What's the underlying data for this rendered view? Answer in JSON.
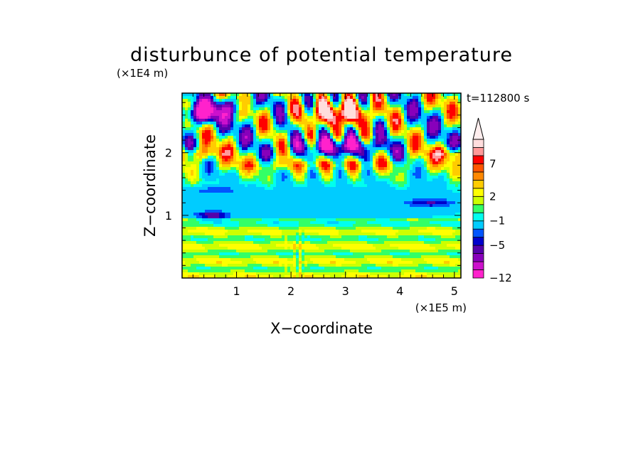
{
  "chart_data": {
    "type": "heatmap",
    "title": "disturbunce of potential temperature",
    "time_label": "t=112800 s",
    "xlabel": "X−coordinate",
    "ylabel": "Z−coordinate",
    "x_unit": "(×1E5 m)",
    "y_unit": "(×1E4 m)",
    "xlim": [
      0,
      5.12
    ],
    "ylim": [
      0,
      2.95
    ],
    "x_ticks": [
      1,
      2,
      3,
      4,
      5
    ],
    "x_ticklabels": [
      "1",
      "2",
      "3",
      "4",
      "5"
    ],
    "y_ticks": [
      1,
      2
    ],
    "y_ticklabels": [
      "1",
      "2"
    ],
    "colorbar": {
      "levels": [
        -12,
        -11,
        -9,
        -7,
        -5,
        -4,
        -3,
        -1,
        0,
        1,
        2,
        3,
        5,
        6,
        7,
        9,
        11
      ],
      "colors": [
        "#ff22cc",
        "#cc11cc",
        "#8800bb",
        "#5500aa",
        "#0000cc",
        "#0055ff",
        "#00ccff",
        "#00ffee",
        "#33ff66",
        "#ccff00",
        "#ffff00",
        "#ffcc00",
        "#ff8800",
        "#ff5500",
        "#ff0000",
        "#ff9999",
        "#ffdddd"
      ],
      "tick_labels": [
        "7",
        "2",
        "−1",
        "−5",
        "−12"
      ],
      "tick_values": [
        7,
        2,
        -1,
        -5,
        -12
      ],
      "extend": "max"
    },
    "features": [
      {
        "x": 2.9,
        "z": 2.6,
        "value": 11,
        "description": "warm anomaly"
      },
      {
        "x": 2.9,
        "z": 2.1,
        "value": -9,
        "description": "cold anomaly"
      },
      {
        "x": 0.3,
        "z": 2.6,
        "value": -12,
        "description": "cold anomaly top-left"
      },
      {
        "x": 0.2,
        "z": 2.0,
        "value": 5,
        "description": "warm band left"
      },
      {
        "x": 5.0,
        "z": 2.0,
        "value": 5,
        "description": "warm band right"
      },
      {
        "x": 2.5,
        "z": 1.1,
        "value": -1,
        "description": "cyan layer"
      },
      {
        "x": 0.6,
        "z": 1.0,
        "value": -5,
        "description": "cold blob left"
      },
      {
        "x": 2.5,
        "z": 0.5,
        "value": 1,
        "description": "near-zero lower layers"
      }
    ]
  }
}
